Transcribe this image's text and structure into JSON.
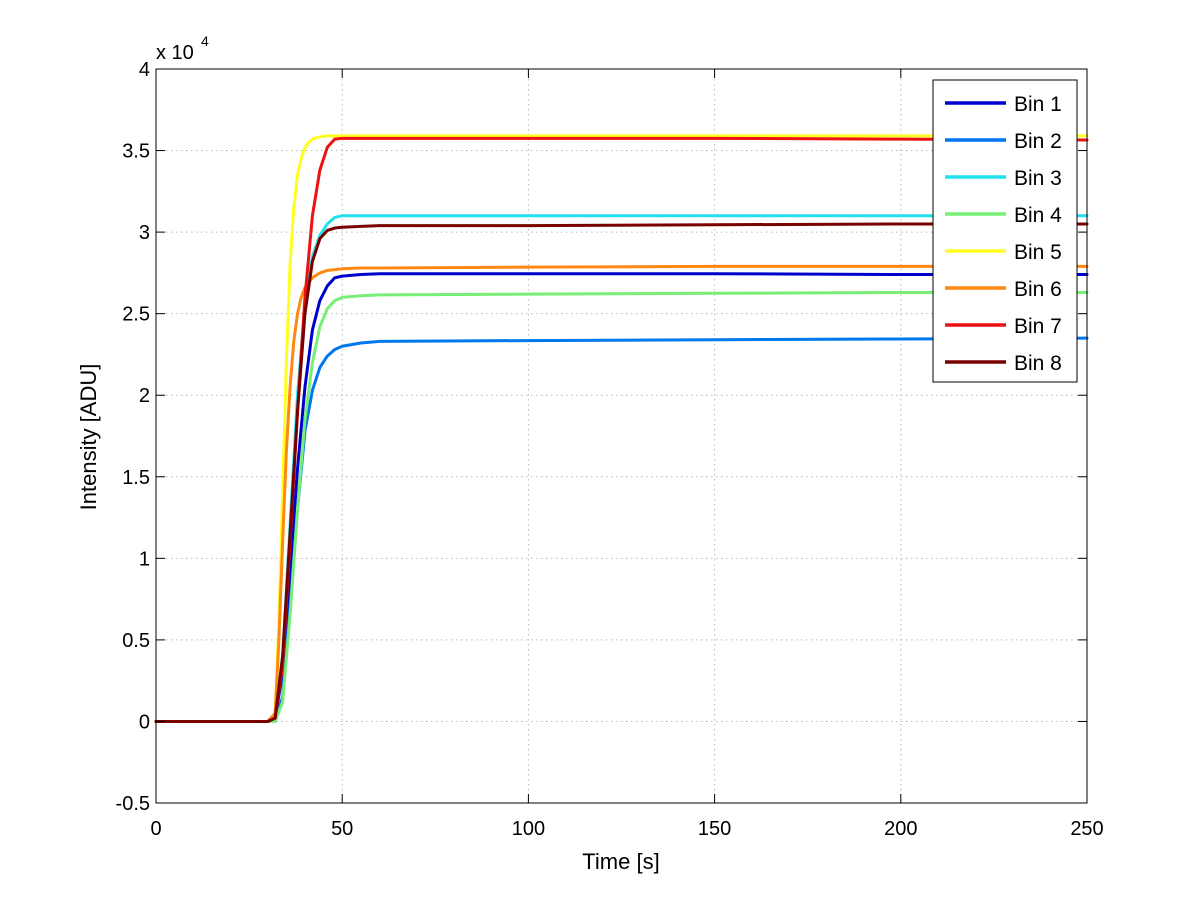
{
  "chart_data": {
    "type": "line",
    "xlabel": "Time [s]",
    "ylabel": "Intensity [ADU]",
    "y_multiplier_base": "x 10",
    "y_multiplier_exp": "4",
    "xlim": [
      0,
      250
    ],
    "ylim": [
      -0.5,
      4
    ],
    "xticks": [
      0,
      50,
      100,
      150,
      200,
      250
    ],
    "yticks": [
      -0.5,
      0,
      0.5,
      1,
      1.5,
      2,
      2.5,
      3,
      3.5,
      4
    ],
    "xtick_labels": [
      "0",
      "50",
      "100",
      "150",
      "200",
      "250"
    ],
    "ytick_labels": [
      "-0.5",
      "0",
      "0.5",
      "1",
      "1.5",
      "2",
      "2.5",
      "3",
      "3.5",
      "4"
    ],
    "grid": true,
    "legend_position": "top-right",
    "series": [
      {
        "name": "Bin 1",
        "color": "#0000cc",
        "x": [
          0,
          30,
          32,
          34,
          36,
          38,
          40,
          42,
          44,
          46,
          48,
          50,
          55,
          60,
          100,
          150,
          200,
          250
        ],
        "y": [
          0,
          0,
          0.02,
          0.3,
          0.9,
          1.55,
          2.05,
          2.4,
          2.58,
          2.67,
          2.72,
          2.73,
          2.74,
          2.745,
          2.745,
          2.745,
          2.74,
          2.74
        ]
      },
      {
        "name": "Bin 2",
        "color": "#0077ee",
        "x": [
          0,
          30,
          32,
          34,
          36,
          38,
          40,
          42,
          44,
          46,
          48,
          50,
          55,
          60,
          100,
          150,
          200,
          250
        ],
        "y": [
          0,
          0,
          0.0,
          0.15,
          0.7,
          1.3,
          1.78,
          2.03,
          2.17,
          2.24,
          2.28,
          2.3,
          2.32,
          2.33,
          2.335,
          2.34,
          2.345,
          2.35
        ]
      },
      {
        "name": "Bin 3",
        "color": "#22e0ee",
        "x": [
          0,
          30,
          32,
          34,
          36,
          38,
          40,
          42,
          44,
          46,
          48,
          50,
          55,
          60,
          100,
          150,
          200,
          250
        ],
        "y": [
          0,
          0,
          0.02,
          0.4,
          1.2,
          2.0,
          2.55,
          2.85,
          2.98,
          3.05,
          3.09,
          3.1,
          3.1,
          3.1,
          3.1,
          3.1,
          3.1,
          3.1
        ]
      },
      {
        "name": "Bin 4",
        "color": "#77ee77",
        "x": [
          0,
          30,
          32,
          34,
          36,
          38,
          40,
          42,
          44,
          46,
          48,
          50,
          55,
          60,
          100,
          150,
          200,
          250
        ],
        "y": [
          0,
          0,
          0.0,
          0.12,
          0.65,
          1.3,
          1.85,
          2.2,
          2.42,
          2.53,
          2.58,
          2.6,
          2.61,
          2.615,
          2.62,
          2.625,
          2.63,
          2.63
        ]
      },
      {
        "name": "Bin 5",
        "color": "#ffff22",
        "x": [
          0,
          30,
          32,
          33,
          34,
          35,
          36,
          37,
          38,
          39,
          40,
          41,
          42,
          44,
          46,
          48,
          50,
          60,
          100,
          150,
          200,
          250
        ],
        "y": [
          0,
          0,
          0.05,
          0.6,
          1.4,
          2.2,
          2.8,
          3.15,
          3.35,
          3.45,
          3.52,
          3.55,
          3.57,
          3.585,
          3.59,
          3.59,
          3.59,
          3.59,
          3.59,
          3.59,
          3.59,
          3.59
        ]
      },
      {
        "name": "Bin 6",
        "color": "#ff8811",
        "x": [
          0,
          30,
          32,
          33,
          34,
          35,
          36,
          37,
          38,
          39,
          40,
          42,
          44,
          46,
          48,
          50,
          55,
          60,
          100,
          150,
          200,
          250
        ],
        "y": [
          0,
          0,
          0.05,
          0.5,
          1.1,
          1.65,
          2.05,
          2.33,
          2.5,
          2.6,
          2.66,
          2.72,
          2.75,
          2.765,
          2.77,
          2.775,
          2.78,
          2.78,
          2.785,
          2.79,
          2.79,
          2.79
        ]
      },
      {
        "name": "Bin 7",
        "color": "#ee1111",
        "x": [
          0,
          30,
          32,
          34,
          36,
          38,
          40,
          42,
          44,
          46,
          48,
          50,
          55,
          60,
          100,
          150,
          200,
          250
        ],
        "y": [
          0,
          0,
          0.02,
          0.35,
          1.1,
          1.9,
          2.6,
          3.1,
          3.38,
          3.52,
          3.57,
          3.575,
          3.575,
          3.575,
          3.575,
          3.575,
          3.57,
          3.565
        ]
      },
      {
        "name": "Bin 8",
        "color": "#7a0000",
        "x": [
          0,
          30,
          32,
          34,
          36,
          38,
          40,
          42,
          44,
          46,
          48,
          50,
          55,
          60,
          100,
          150,
          200,
          250
        ],
        "y": [
          0,
          0,
          0.02,
          0.4,
          1.15,
          1.9,
          2.5,
          2.82,
          2.96,
          3.01,
          3.025,
          3.03,
          3.035,
          3.04,
          3.04,
          3.045,
          3.05,
          3.05
        ]
      }
    ]
  }
}
